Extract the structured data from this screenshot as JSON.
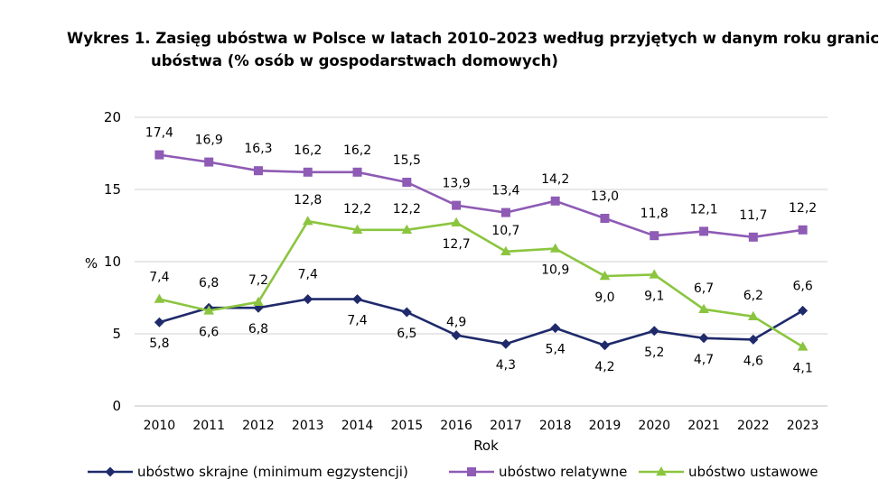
{
  "title": {
    "line1": "Wykres 1. Zasięg ubóstwa w Polsce w latach 2010–2023 według przyjętych w danym roku granic",
    "line2": "ubóstwa (% osób w gospodarstwach domowych)"
  },
  "chart_data": {
    "type": "line",
    "x": [
      "2010",
      "2011",
      "2012",
      "2013",
      "2014",
      "2015",
      "2016",
      "2017",
      "2018",
      "2019",
      "2020",
      "2021",
      "2022",
      "2023"
    ],
    "xlabel": "Rok",
    "ylabel": "%",
    "ylim": [
      0,
      20
    ],
    "yticks": [
      0,
      5,
      10,
      15,
      20
    ],
    "grid": "horizontal",
    "legend_position": "bottom",
    "series": [
      {
        "name": "ubóstwo skrajne (minimum egzystencji)",
        "color": "#1f2a6b",
        "marker": "diamond",
        "values": [
          5.8,
          6.8,
          6.8,
          7.4,
          7.4,
          6.5,
          4.9,
          4.3,
          5.4,
          4.2,
          5.2,
          4.7,
          4.6,
          6.6
        ],
        "labels": [
          "5,8",
          "6,8",
          "6,8",
          "7,4",
          "7,4",
          "6,5",
          "4,9",
          "4,3",
          "5,4",
          "4,2",
          "5,2",
          "4,7",
          "4,6",
          "6,6"
        ]
      },
      {
        "name": "ubóstwo relatywne",
        "color": "#8e5bb5",
        "marker": "square",
        "values": [
          17.4,
          16.9,
          16.3,
          16.2,
          16.2,
          15.5,
          13.9,
          13.4,
          14.2,
          13.0,
          11.8,
          12.1,
          11.7,
          12.2
        ],
        "labels": [
          "17,4",
          "16,9",
          "16,3",
          "16,2",
          "16,2",
          "15,5",
          "13,9",
          "13,4",
          "14,2",
          "13,0",
          "11,8",
          "12,1",
          "11,7",
          "12,2"
        ]
      },
      {
        "name": "ubóstwo ustawowe",
        "color": "#8bc53f",
        "marker": "triangle",
        "values": [
          7.4,
          6.6,
          7.2,
          12.8,
          12.2,
          12.2,
          12.7,
          10.7,
          10.9,
          9.0,
          9.1,
          6.7,
          6.2,
          4.1
        ],
        "labels": [
          "7,4",
          "6,6",
          "7,2",
          "12,8",
          "12,2",
          "12,2",
          "12,7",
          "10,7",
          "10,9",
          "9,0",
          "9,1",
          "6,7",
          "6,2",
          "4,1"
        ]
      }
    ]
  }
}
